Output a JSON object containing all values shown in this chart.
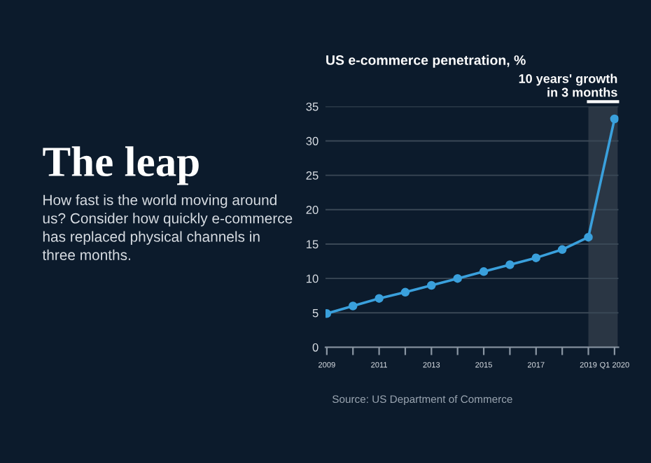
{
  "chart_data": {
    "type": "line",
    "title": "The leap",
    "subtitle": "How fast is the world moving around\nus? Consider how quickly e-commerce\nhas replaced physical channels in\nthree months.",
    "ylabel": "US e-commerce penetration, %",
    "categories": [
      "2009",
      null,
      "2011",
      null,
      "2013",
      null,
      "2015",
      null,
      "2017",
      null,
      "2019",
      "Q1 2020"
    ],
    "series": [
      {
        "color": "#3aa0dc",
        "values": [
          4.9,
          6,
          7.1,
          8,
          9,
          10,
          11,
          12,
          13,
          14.2,
          16,
          33.2
        ]
      }
    ],
    "ylim": [
      0,
      35
    ],
    "yticks": [
      0,
      5,
      10,
      15,
      20,
      25,
      30,
      35
    ],
    "grid": "y",
    "marker": "circle",
    "line_style": "solid",
    "bands": [
      {
        "axis": "x",
        "from": "2019",
        "to": "Q1 2020",
        "label": "10 years' growth\nin 3 months",
        "color": "#2a3644"
      }
    ],
    "annotations": [
      "Source: US Department of Commerce"
    ]
  }
}
